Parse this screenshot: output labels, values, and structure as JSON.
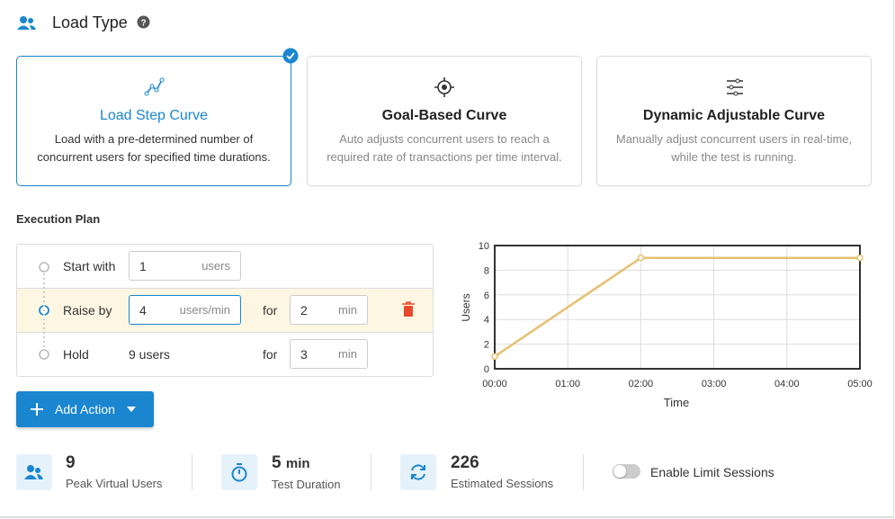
{
  "header": {
    "title": "Load Type"
  },
  "cards": [
    {
      "title": "Load Step Curve",
      "description": [
        "Load with a pre-determined number of",
        "concurrent users for specified time durations."
      ],
      "selected": true
    },
    {
      "title": "Goal-Based Curve",
      "description": [
        "Auto adjusts concurrent users to reach a",
        "required rate of transactions per time interval."
      ],
      "selected": false
    },
    {
      "title": "Dynamic Adjustable Curve",
      "description": [
        "Manually adjust concurrent users in real-time,",
        "while the test is running."
      ],
      "selected": false
    }
  ],
  "execution_plan": {
    "title": "Execution Plan",
    "rows": [
      {
        "label": "Start with",
        "value": 1,
        "unit": "users"
      },
      {
        "label": "Raise by",
        "value": 4,
        "unit": "users/min",
        "for": "for",
        "duration": 2,
        "duration_unit": "min"
      },
      {
        "label": "Hold",
        "value": "9 users",
        "for": "for",
        "duration": 3,
        "duration_unit": "min"
      }
    ]
  },
  "add_action": "Add Action",
  "chart_data": {
    "type": "line",
    "x_label": "Time",
    "y_label": "Users",
    "x": [
      0,
      2,
      5
    ],
    "values": [
      1,
      9,
      9
    ],
    "color": "#e6c070",
    "xlim": [
      0,
      5
    ],
    "ylim": [
      0,
      10
    ],
    "xticks": [
      {
        "value": 0,
        "label": "00:00"
      },
      {
        "value": 1,
        "label": "01:00"
      },
      {
        "value": 2,
        "label": "02:00"
      },
      {
        "value": 3,
        "label": "03:00"
      },
      {
        "value": 4,
        "label": "04:00"
      },
      {
        "value": 5,
        "label": "05:00"
      }
    ],
    "yticks": [
      0,
      2,
      4,
      6,
      8,
      10
    ],
    "grid": true
  },
  "stats": [
    {
      "value": 9,
      "label": "Peak Virtual Users"
    },
    {
      "value": 5,
      "unit": "min",
      "label": "Test Duration"
    },
    {
      "value": 226,
      "label": "Estimated Sessions"
    }
  ],
  "toggle": {
    "label": "Enable Limit Sessions",
    "on": false
  }
}
